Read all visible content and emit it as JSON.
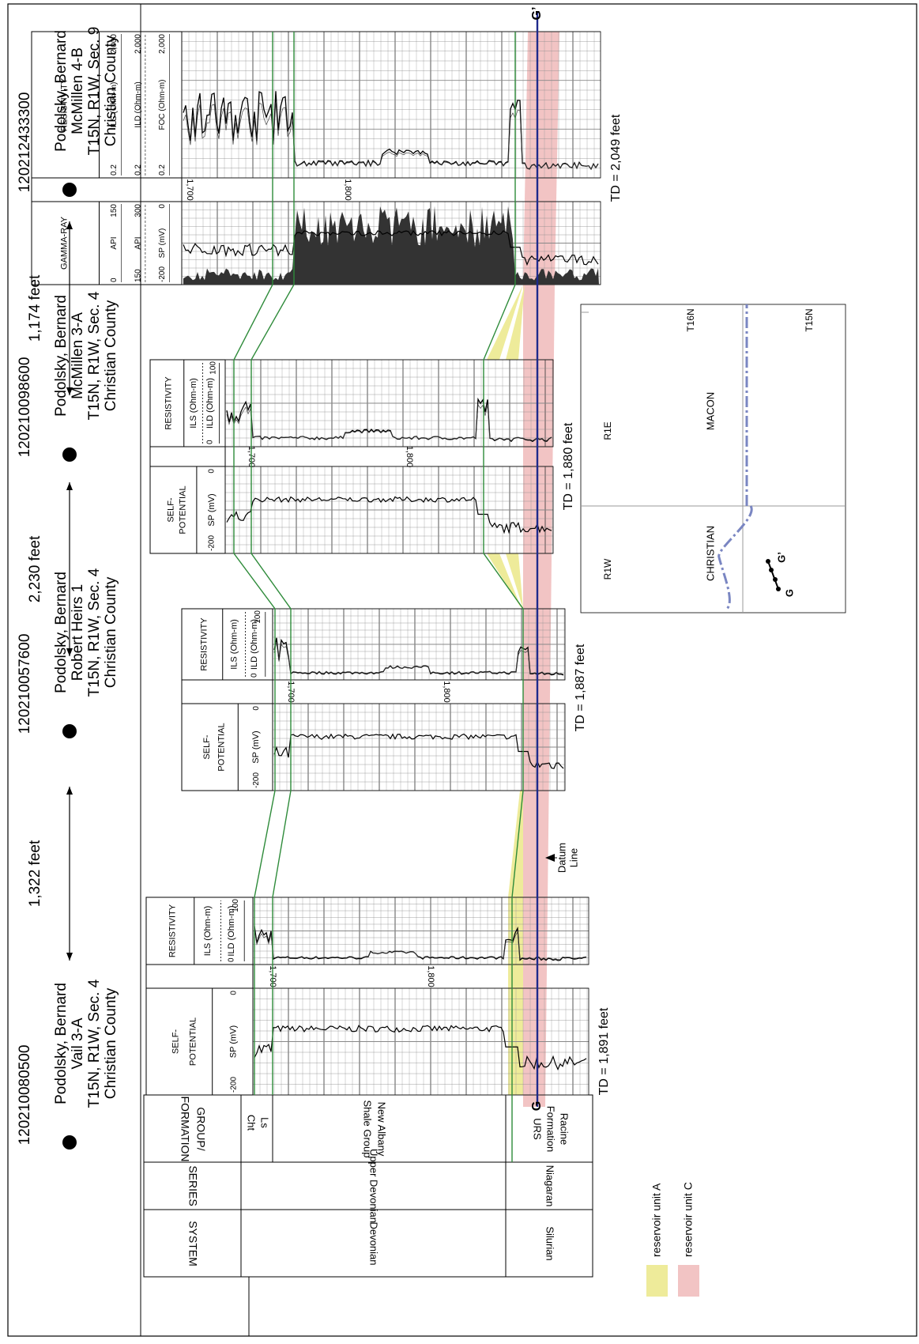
{
  "header": {
    "wells": [
      {
        "api": "120210080500",
        "operator": "Podolsky, Bernard",
        "lease": "Vail 3-A",
        "location": "T15N, R1W, Sec. 4",
        "county": "Christian County",
        "td": "TD = 1,891 feet"
      },
      {
        "api": "120210057600",
        "operator": "Podolsky, Bernard",
        "lease": "Robert Heirs 1",
        "location": "T15N, R1W, Sec. 4",
        "county": "Christian County",
        "td": "TD = 1,887 feet"
      },
      {
        "api": "120210098600",
        "operator": "Podolsky, Bernard",
        "lease": "McMillen 3-A",
        "location": "T15N, R1W, Sec. 4",
        "county": "Christian County",
        "td": "TD = 1,880 feet"
      },
      {
        "api": "120212433300",
        "operator": "Podolsky, Bernard",
        "lease": "McMillen 4-B",
        "location": "T15N, R1W, Sec. 9",
        "county": "Christian County",
        "td": "TD = 2,049 feet"
      }
    ],
    "distances": [
      "1,322 feet",
      "2,230 feet",
      "1,174 feet"
    ]
  },
  "column": {
    "headers": {
      "system": "SYSTEM",
      "series": "SERIES",
      "formation": [
        "GROUP/",
        "FORMATION"
      ]
    },
    "systems": [
      "Devonian",
      "Silurian"
    ],
    "series": [
      "Upper Devonian",
      "Niagaran"
    ],
    "formations": [
      [
        "Cht",
        "Ls"
      ],
      [
        "New Albany",
        "Shale Group"
      ],
      [
        "Racine",
        "Formation",
        "URS"
      ]
    ]
  },
  "logs": [
    {
      "left": {
        "title": [
          "SELF-",
          "POTENTIAL"
        ],
        "scale": [
          "-200",
          "SP (mV)",
          "0"
        ]
      },
      "right": {
        "title": "RESISTIVITY",
        "curves": [
          "ILS (Ohm-m)",
          "ILD (Ohm-m)"
        ],
        "scale": [
          "0",
          "100"
        ]
      },
      "depths": [
        "1,700",
        "1,800"
      ]
    },
    {
      "left": {
        "title": [
          "SELF-",
          "POTENTIAL"
        ],
        "scale": [
          "-200",
          "SP (mV)",
          "0"
        ]
      },
      "right": {
        "title": "RESISTIVITY",
        "curves": [
          "ILS (Ohm-m)",
          "ILD (Ohm-m)"
        ],
        "scale": [
          "0",
          "100"
        ]
      },
      "depths": [
        "1,700",
        "1,800"
      ]
    },
    {
      "left": {
        "title": [
          "SELF-",
          "POTENTIAL"
        ],
        "scale": [
          "-200",
          "SP (mV)",
          "0"
        ]
      },
      "right": {
        "title": "RESISTIVITY",
        "curves": [
          "ILS (Ohm-m)",
          "ILD (Ohm-m)"
        ],
        "scale": [
          "0",
          "100"
        ]
      },
      "depths": [
        "1,700",
        "1,800"
      ]
    },
    {
      "left": {
        "title": [
          "GAMMA-RAY"
        ],
        "rows": [
          [
            "0",
            "API",
            "150"
          ],
          [
            "150",
            "API",
            "300"
          ],
          [
            "-200",
            "SP (mV)",
            "0"
          ]
        ]
      },
      "right": {
        "title": "RESISTIVITY",
        "rows": [
          [
            "0.2",
            "ILS (Ohm-m)",
            "2,000"
          ],
          [
            "0.2",
            "ILD (Ohm-m)",
            "2,000"
          ],
          [
            "0.2",
            "FOC (Ohm-m)",
            "2,000"
          ]
        ]
      },
      "depths": [
        "1,700",
        "1,800"
      ]
    }
  ],
  "annotations": {
    "datum": [
      "Datum",
      "Line"
    ],
    "start": "G",
    "end": "G’"
  },
  "legend": [
    "reservoir unit A",
    "reservoir unit C"
  ],
  "map": {
    "counties": [
      "MACON",
      "CHRISTIAN"
    ],
    "ranges": [
      "R1W",
      "R1E"
    ],
    "townships": [
      "T16N",
      "T15N"
    ],
    "start": "G",
    "end": "G’"
  }
}
